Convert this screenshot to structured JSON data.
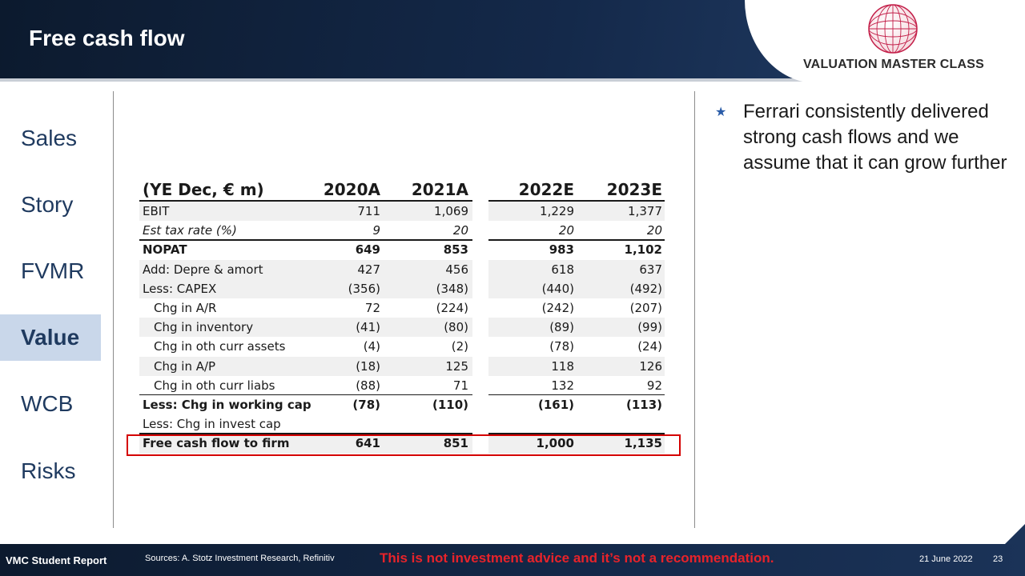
{
  "header": {
    "title": "Free cash flow",
    "brand": "VALUATION MASTER CLASS"
  },
  "sidebar": {
    "items": [
      {
        "label": "Sales",
        "active": false
      },
      {
        "label": "Story",
        "active": false
      },
      {
        "label": "FVMR",
        "active": false
      },
      {
        "label": "Value",
        "active": true
      },
      {
        "label": "WCB",
        "active": false
      },
      {
        "label": "Risks",
        "active": false
      }
    ]
  },
  "table": {
    "columns": [
      "(YE Dec, € m)",
      "2020A",
      "2021A",
      "2022E",
      "2023E"
    ],
    "rows": [
      {
        "label": "EBIT",
        "values": [
          "711",
          "1,069",
          "1,229",
          "1,377"
        ]
      },
      {
        "label": "Est tax rate (%)",
        "values": [
          "9",
          "20",
          "20",
          "20"
        ]
      },
      {
        "label": "NOPAT",
        "values": [
          "649",
          "853",
          "983",
          "1,102"
        ]
      },
      {
        "label": "Add: Depre & amort",
        "values": [
          "427",
          "456",
          "618",
          "637"
        ]
      },
      {
        "label": "Less: CAPEX",
        "values": [
          "(356)",
          "(348)",
          "(440)",
          "(492)"
        ]
      },
      {
        "label": "Chg in A/R",
        "values": [
          "72",
          "(224)",
          "(242)",
          "(207)"
        ]
      },
      {
        "label": "Chg in inventory",
        "values": [
          "(41)",
          "(80)",
          "(89)",
          "(99)"
        ]
      },
      {
        "label": "Chg in oth curr assets",
        "values": [
          "(4)",
          "(2)",
          "(78)",
          "(24)"
        ]
      },
      {
        "label": "Chg in A/P",
        "values": [
          "(18)",
          "125",
          "118",
          "126"
        ]
      },
      {
        "label": "Chg in oth curr liabs",
        "values": [
          "(88)",
          "71",
          "132",
          "92"
        ]
      },
      {
        "label": "Less: Chg in working cap",
        "values": [
          "(78)",
          "(110)",
          "(161)",
          "(113)"
        ]
      },
      {
        "label": "Less: Chg in invest cap",
        "values": [
          "",
          "",
          "",
          ""
        ]
      },
      {
        "label": "Free cash flow to firm",
        "values": [
          "641",
          "851",
          "1,000",
          "1,135"
        ]
      }
    ]
  },
  "bullets": [
    "Ferrari consistently delivered strong cash flows and we assume that it can grow further"
  ],
  "footer": {
    "report": "VMC Student Report",
    "sources": "Sources: A. Stotz Investment Research, Refinitiv",
    "disclaimer": "This is not investment advice and it’s not a recommendation.",
    "date": "21 June 2022",
    "page": "23"
  },
  "colors": {
    "navy": "#14294a",
    "accent_red": "#d40000",
    "nav_text": "#1f3a5f",
    "active_nav_bg": "#c9d7ea"
  }
}
